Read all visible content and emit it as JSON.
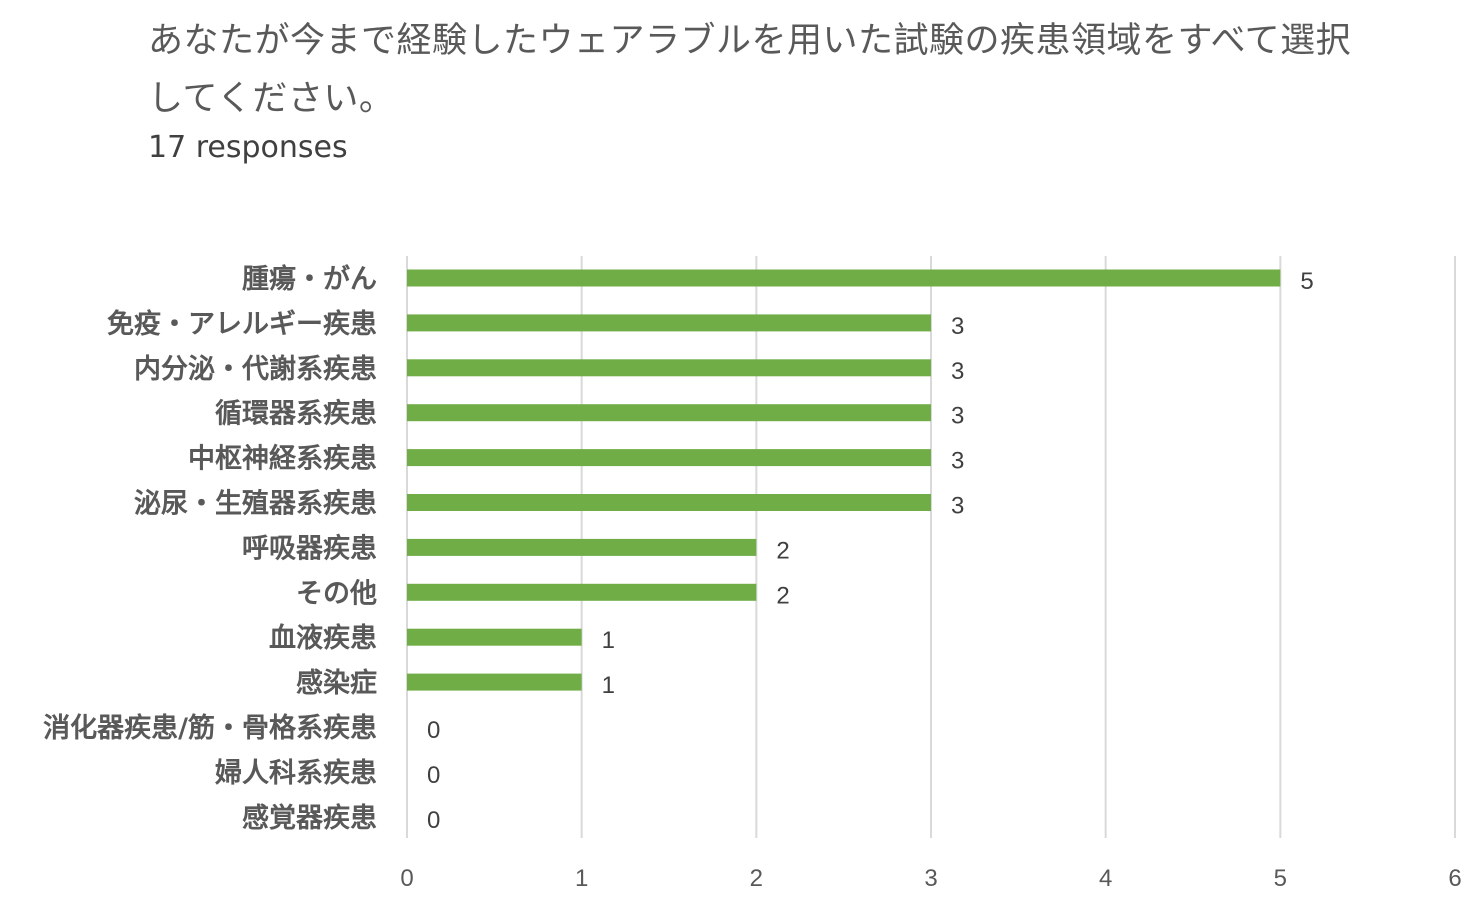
{
  "header": {
    "question": "あなたが今まで経験したウェアラブルを用いた試験の疾患領域をすべて選択してください。",
    "responses": "17 responses"
  },
  "chart_data": {
    "type": "bar",
    "orientation": "horizontal",
    "categories": [
      "腫瘍・がん",
      "免疫・アレルギー疾患",
      "内分泌・代謝系疾患",
      "循環器系疾患",
      "中枢神経系疾患",
      "泌尿・生殖器系疾患",
      "呼吸器疾患",
      "その他",
      "血液疾患",
      "感染症",
      "消化器疾患/筋・骨格系疾患",
      "婦人科系疾患",
      "感覚器疾患"
    ],
    "values": [
      5,
      3,
      3,
      3,
      3,
      3,
      2,
      2,
      1,
      1,
      0,
      0,
      0
    ],
    "xlim": [
      0,
      6
    ],
    "xticks": [
      "0",
      "1",
      "2",
      "3",
      "4",
      "5",
      "6"
    ],
    "grid": "vertical",
    "data_labels": true,
    "bar_color": "#70ad47",
    "grid_color": "#d9d9d9"
  }
}
